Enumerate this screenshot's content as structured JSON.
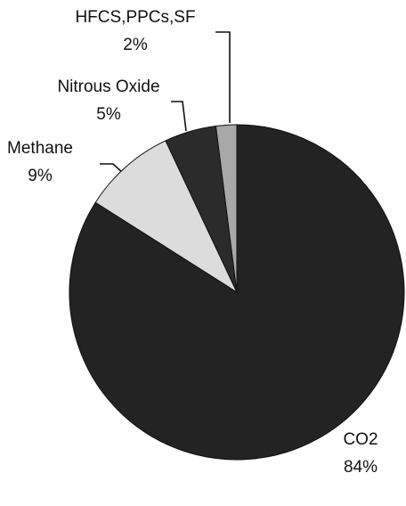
{
  "chart_data": {
    "type": "pie",
    "categories": [
      "CO2",
      "Methane",
      "Nitrous Oxide",
      "HFCS,PPCs,SF"
    ],
    "values": [
      84,
      9,
      5,
      2
    ],
    "value_labels": [
      "84%",
      "9%",
      "5%",
      "2%"
    ],
    "colors": [
      "#232323",
      "#dcdcdc",
      "#2b2b2b",
      "#a8a8a8"
    ]
  }
}
